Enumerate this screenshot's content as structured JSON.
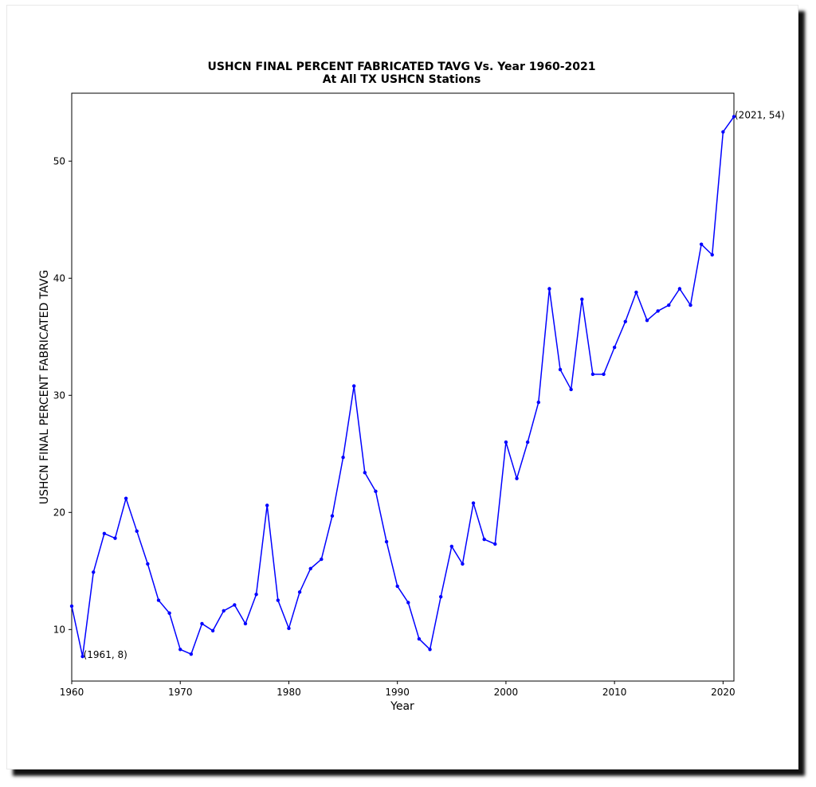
{
  "chart_data": {
    "type": "line",
    "title": "USHCN FINAL PERCENT FABRICATED TAVG Vs. Year 1960-2021",
    "subtitle": "At All TX USHCN Stations",
    "xlabel": "Year",
    "ylabel": "USHCN FINAL PERCENT FABRICATED TAVG",
    "xlim": [
      1960,
      2021
    ],
    "ylim": [
      5.6,
      55.8
    ],
    "xticks": [
      1960,
      1970,
      1980,
      1990,
      2000,
      2010,
      2020
    ],
    "yticks": [
      10,
      20,
      30,
      40,
      50
    ],
    "grid": false,
    "line_color": "#0000ff",
    "x": [
      1960,
      1961,
      1962,
      1963,
      1964,
      1965,
      1966,
      1967,
      1968,
      1969,
      1970,
      1971,
      1972,
      1973,
      1974,
      1975,
      1976,
      1977,
      1978,
      1979,
      1980,
      1981,
      1982,
      1983,
      1984,
      1985,
      1986,
      1987,
      1988,
      1989,
      1990,
      1991,
      1992,
      1993,
      1994,
      1995,
      1996,
      1997,
      1998,
      1999,
      2000,
      2001,
      2002,
      2003,
      2004,
      2005,
      2006,
      2007,
      2008,
      2009,
      2010,
      2011,
      2012,
      2013,
      2014,
      2015,
      2016,
      2017,
      2018,
      2019,
      2020,
      2021
    ],
    "y": [
      12.0,
      7.7,
      14.9,
      18.2,
      17.8,
      21.2,
      18.4,
      15.6,
      12.5,
      11.4,
      8.3,
      7.9,
      10.5,
      9.9,
      11.6,
      12.1,
      10.5,
      13.0,
      20.6,
      12.5,
      10.1,
      13.2,
      15.2,
      16.0,
      19.7,
      24.7,
      30.8,
      23.4,
      21.8,
      17.5,
      13.7,
      12.3,
      9.2,
      8.3,
      12.8,
      17.1,
      15.6,
      20.8,
      17.7,
      17.3,
      26.0,
      22.9,
      26.0,
      29.4,
      39.1,
      32.2,
      30.5,
      38.2,
      31.8,
      31.8,
      34.1,
      36.3,
      38.8,
      36.4,
      37.2,
      37.7,
      39.1,
      37.7,
      42.9,
      42.0,
      52.5,
      53.8
    ],
    "annotations": [
      {
        "year": 1961,
        "value": 7.7,
        "text": "(1961, 8)"
      },
      {
        "year": 2021,
        "value": 53.8,
        "text": "(2021, 54)"
      }
    ]
  }
}
